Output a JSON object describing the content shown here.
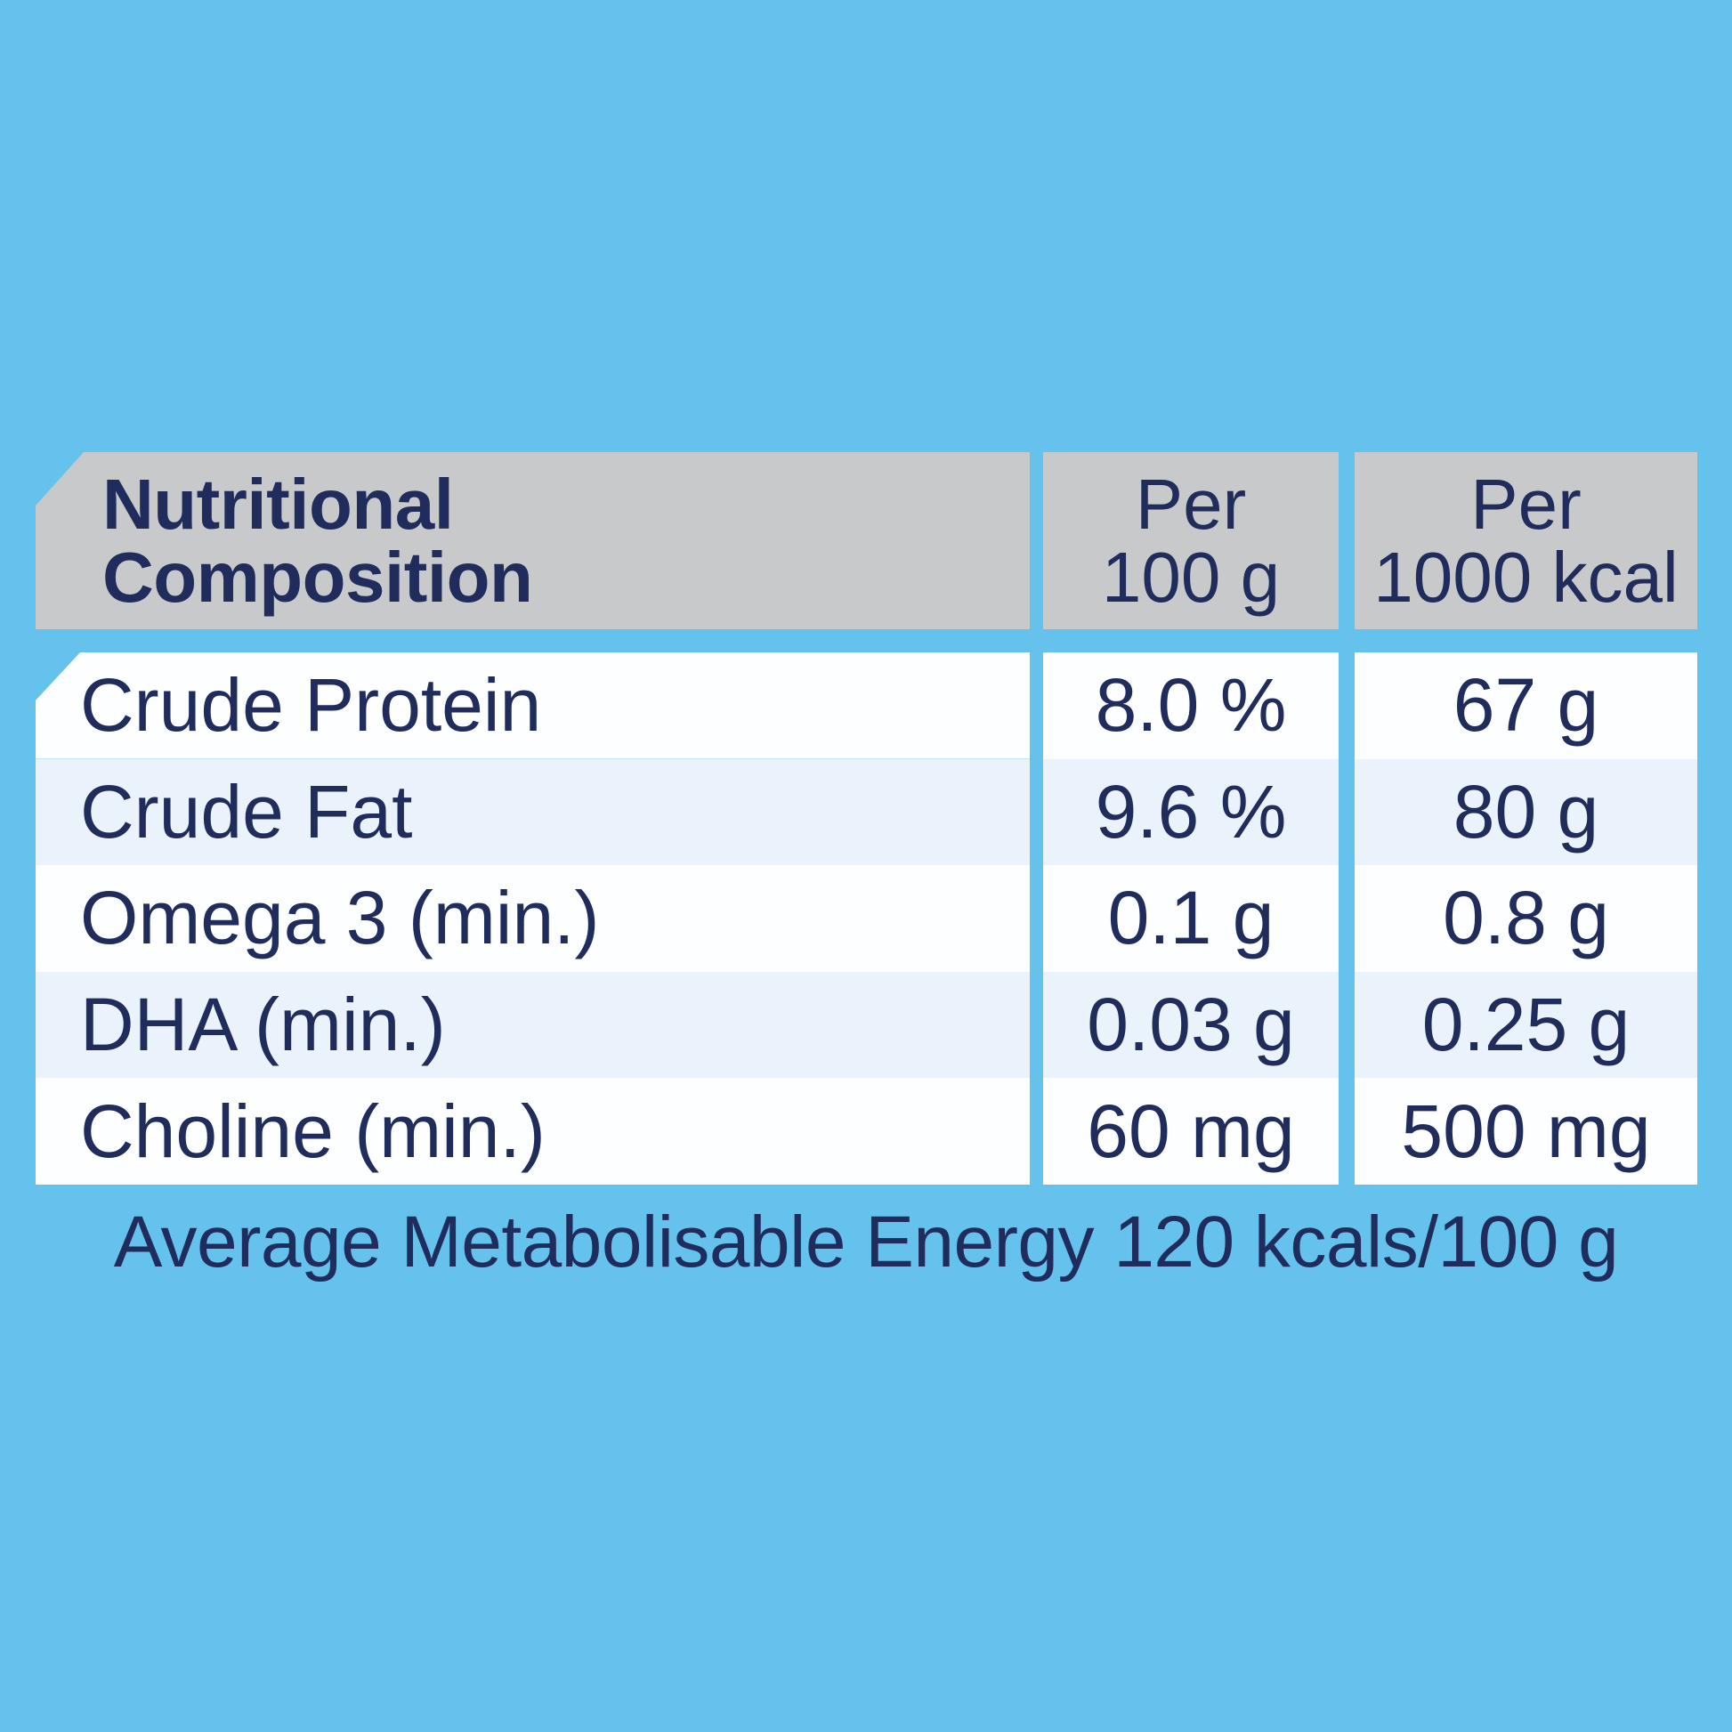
{
  "table": {
    "header": {
      "title": "Nutritional\nComposition",
      "col_per_100g": "Per\n100 g",
      "col_per_1000kcal": "Per\n1000 kcal"
    },
    "rows": [
      {
        "label": "Crude Protein",
        "per_100g": "8.0 %",
        "per_1000kcal": "67 g"
      },
      {
        "label": "Crude Fat",
        "per_100g": "9.6 %",
        "per_1000kcal": "80 g"
      },
      {
        "label": "Omega 3 (min.)",
        "per_100g": "0.1 g",
        "per_1000kcal": "0.8 g"
      },
      {
        "label": "DHA (min.)",
        "per_100g": "0.03 g",
        "per_1000kcal": "0.25 g"
      },
      {
        "label": "Choline (min.)",
        "per_100g": "60 mg",
        "per_1000kcal": "500 mg"
      }
    ],
    "footer": "Average Metabolisable Energy 120 kcals/100 g"
  },
  "colors": {
    "background_blue": "#64c2ed",
    "header_gray": "#c8c9ca",
    "row_white": "#fdfeff",
    "row_pale_blue": "#eaf3fb",
    "text_navy": "#1f2c5c"
  }
}
